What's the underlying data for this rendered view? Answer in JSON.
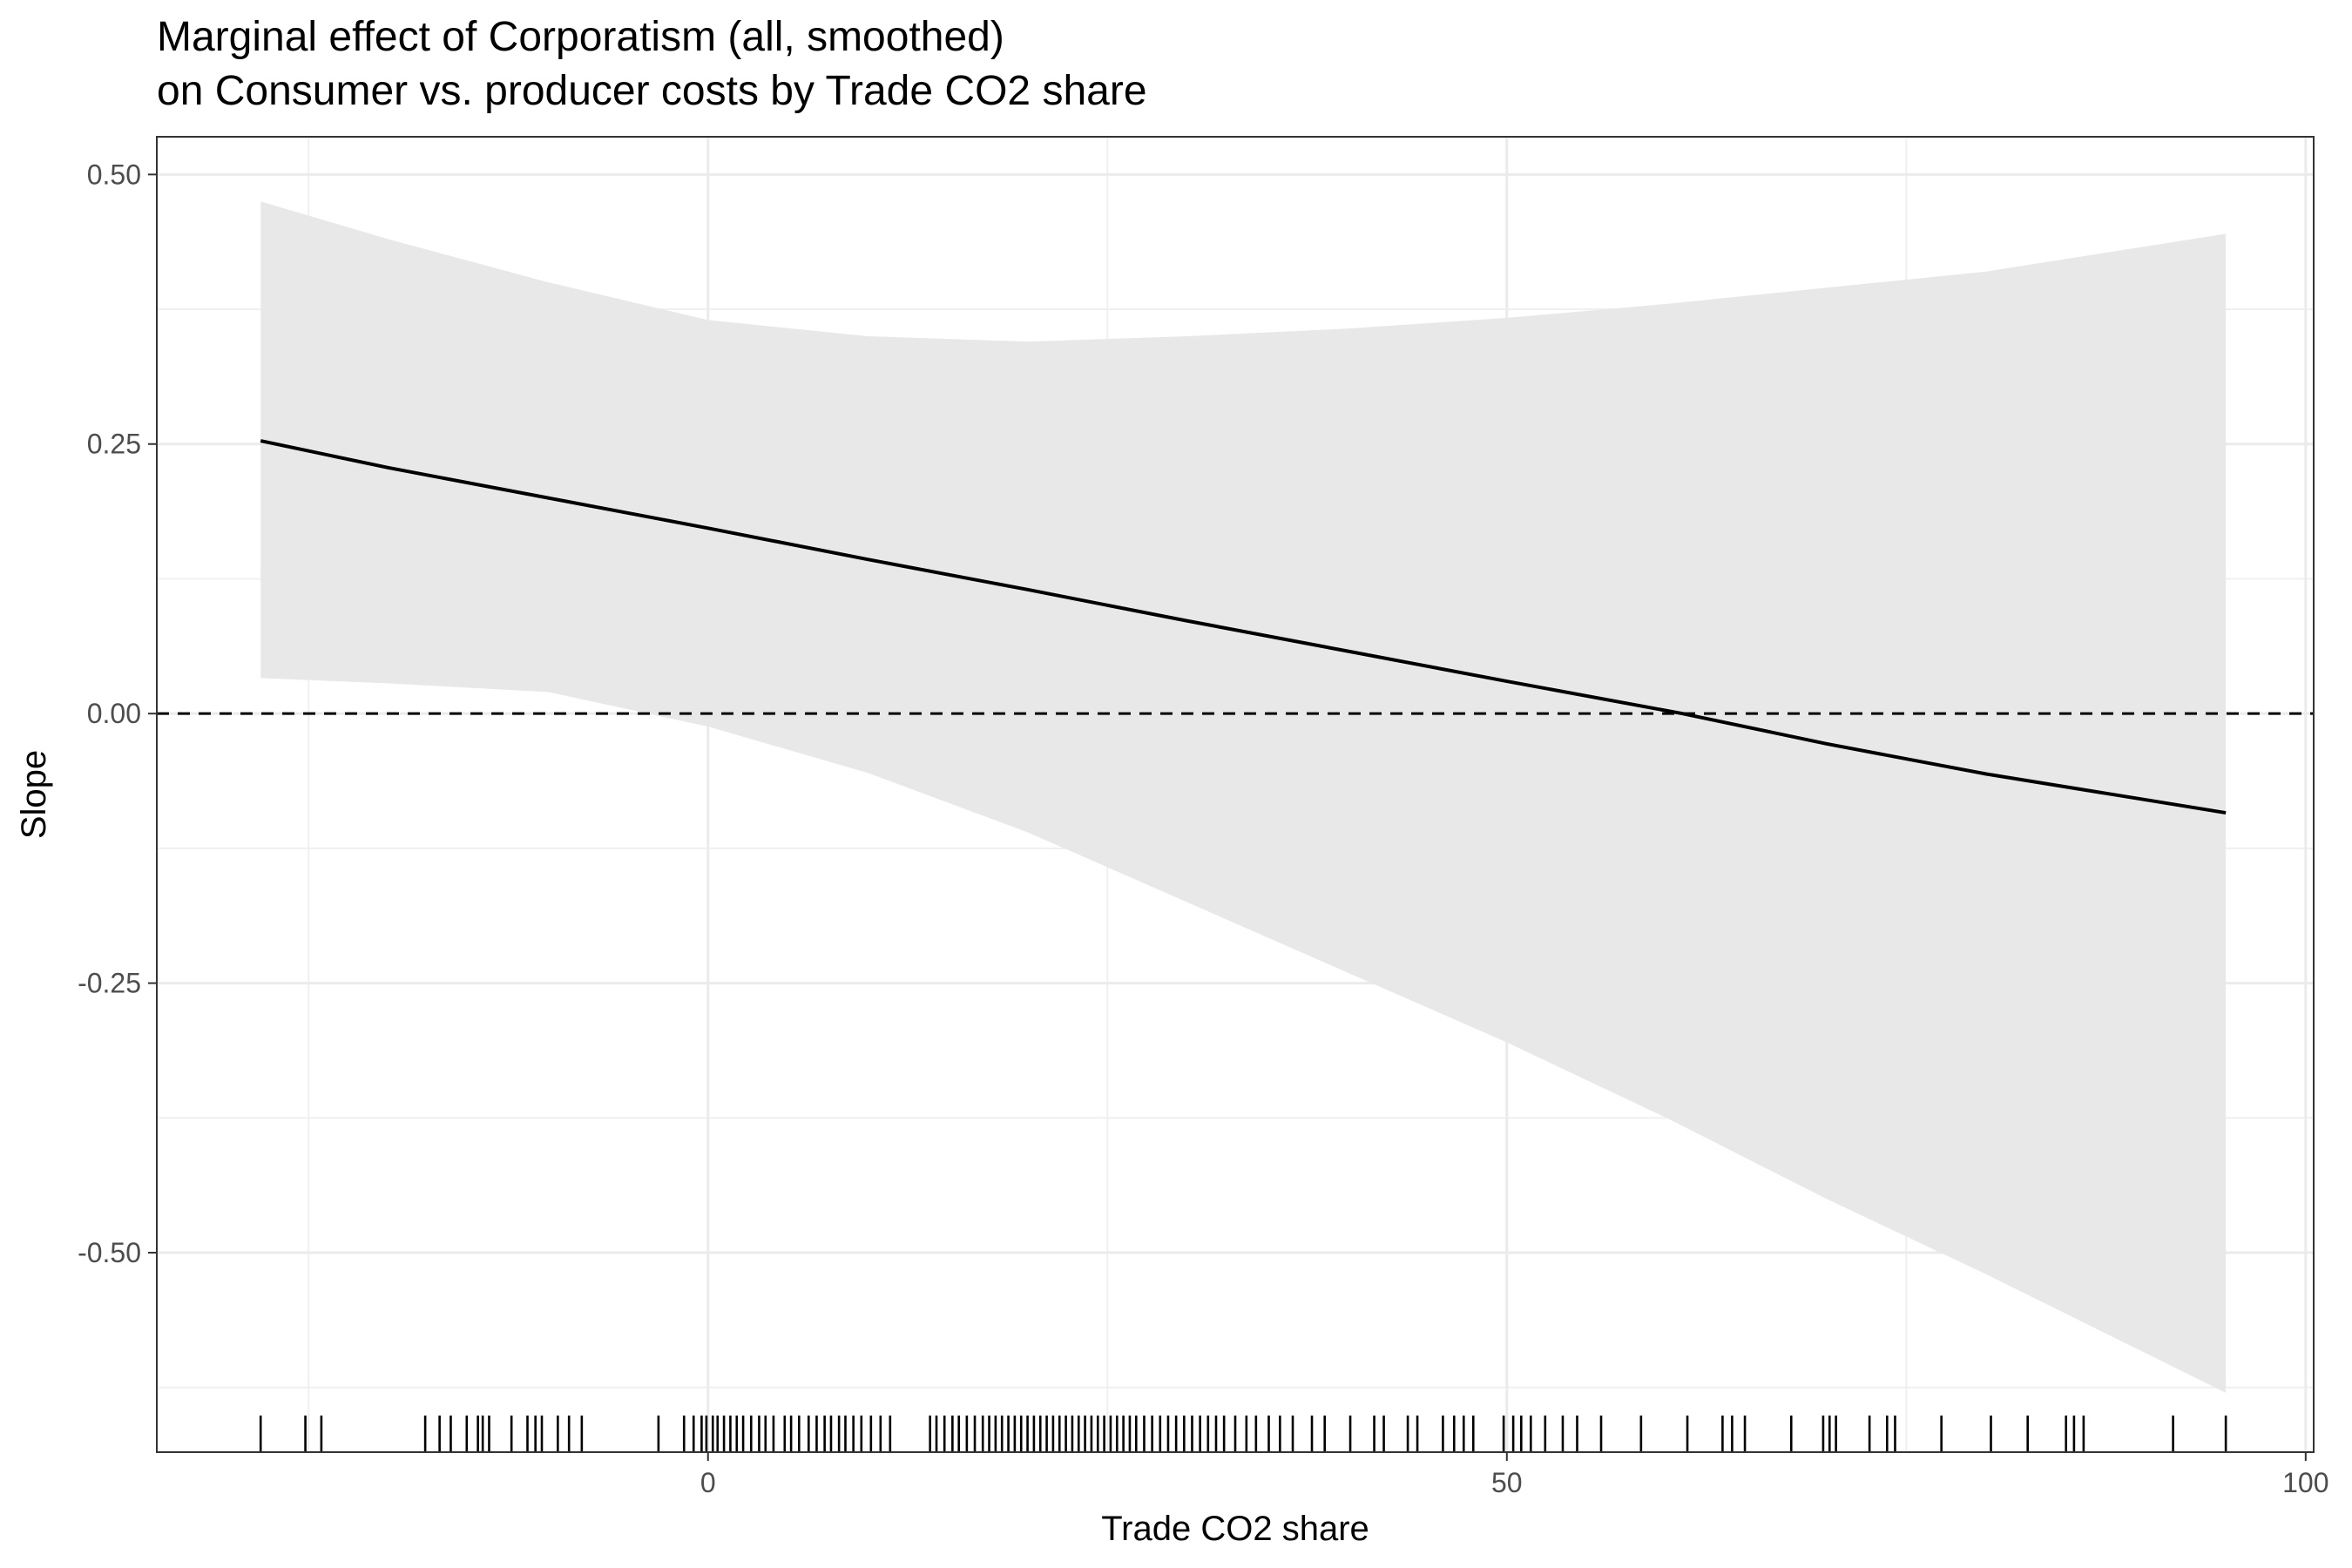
{
  "chart_data": {
    "type": "line",
    "title": "Marginal effect of Corporatism (all, smoothed)",
    "subtitle": "on Consumer vs. producer costs by Trade CO2 share",
    "xlabel": "Trade CO2 share",
    "ylabel": "Slope",
    "xlim": [
      -34.5,
      100.5
    ],
    "ylim": [
      -0.685,
      0.535
    ],
    "x_ticks": [
      {
        "value": 0,
        "label": "0"
      },
      {
        "value": 50,
        "label": "50"
      },
      {
        "value": 100,
        "label": "100"
      }
    ],
    "x_minor_ticks": [
      -25,
      25,
      75
    ],
    "y_ticks": [
      {
        "value": 0.5,
        "label": "0.50"
      },
      {
        "value": 0.25,
        "label": "0.25"
      },
      {
        "value": 0.0,
        "label": "0.00"
      },
      {
        "value": -0.25,
        "label": "-0.25"
      },
      {
        "value": -0.5,
        "label": "-0.50"
      }
    ],
    "y_minor_ticks": [
      0.375,
      0.125,
      -0.125,
      -0.375,
      -0.625
    ],
    "grid": true,
    "reference_line": {
      "y": 0,
      "style": "dashed"
    },
    "series": [
      {
        "x": [
          -28,
          -20,
          -10,
          0,
          10,
          20,
          30,
          40,
          50,
          61,
          70,
          80,
          95
        ],
        "values": [
          0.253,
          0.228,
          0.2,
          0.172,
          0.143,
          0.115,
          0.086,
          0.058,
          0.03,
          0.0,
          -0.028,
          -0.056,
          -0.092
        ]
      }
    ],
    "confidence_band": {
      "x": [
        -28,
        -20,
        -10,
        0,
        10,
        20,
        30,
        40,
        50,
        60,
        70,
        80,
        95
      ],
      "upper": [
        0.475,
        0.44,
        0.4,
        0.365,
        0.35,
        0.345,
        0.35,
        0.357,
        0.367,
        0.38,
        0.395,
        0.41,
        0.445
      ],
      "lower": [
        0.033,
        0.028,
        0.02,
        -0.012,
        -0.055,
        -0.11,
        -0.175,
        -0.24,
        -0.305,
        -0.375,
        -0.45,
        -0.52,
        -0.63
      ]
    },
    "rug_x": [
      -28,
      -25.2,
      -24.2,
      -17.7,
      -16.8,
      -16.1,
      -15.1,
      -14.4,
      -14.1,
      -13.7,
      -12.3,
      -11.3,
      -10.8,
      -10.4,
      -9.4,
      -8.7,
      -7.9,
      -3.1,
      -1.5,
      -0.9,
      -0.4,
      -0.1,
      0.3,
      0.6,
      1,
      1.4,
      1.8,
      2.2,
      2.7,
      3.2,
      3.6,
      4.1,
      4.8,
      5.2,
      5.7,
      6.3,
      6.8,
      7.3,
      7.7,
      8.2,
      8.6,
      9.1,
      9.6,
      10.2,
      10.8,
      11.4,
      13.9,
      14.3,
      14.8,
      15.3,
      15.7,
      16.2,
      16.7,
      17.2,
      17.6,
      18,
      18.4,
      18.8,
      19.2,
      19.6,
      20,
      20.4,
      20.8,
      21.2,
      21.6,
      22,
      22.4,
      22.8,
      23.2,
      23.6,
      24,
      24.4,
      24.8,
      25.2,
      25.6,
      26,
      26.4,
      26.8,
      27.3,
      27.8,
      28.3,
      28.8,
      29.3,
      29.8,
      30.3,
      30.8,
      31.3,
      31.8,
      32.3,
      33,
      33.7,
      34.3,
      35.1,
      35.8,
      36.6,
      37.8,
      38.6,
      40.2,
      41.7,
      42.3,
      43.8,
      44.4,
      46,
      46.7,
      47.3,
      47.9,
      49.8,
      50.4,
      50.9,
      51.5,
      52.4,
      53.5,
      54.4,
      55.9,
      58.4,
      61.3,
      63.5,
      64.1,
      64.9,
      67.8,
      69.8,
      70.2,
      70.6,
      72.7,
      73.8,
      74.3,
      77.2,
      80.3,
      82.6,
      85,
      85.5,
      86.1,
      91.7,
      95
    ]
  }
}
